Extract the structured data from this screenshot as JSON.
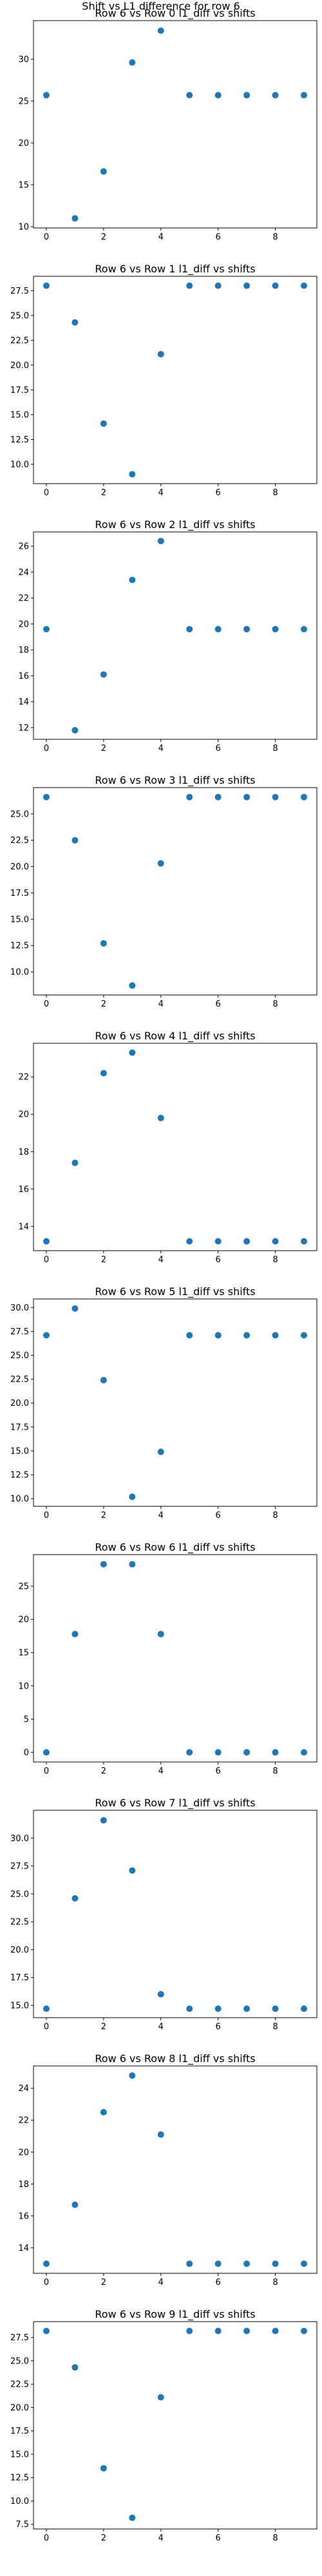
{
  "figure": {
    "suptitle": "Shift vs L1 difference for row 6",
    "marker_color": "#1f77b4"
  },
  "chart_data": [
    {
      "type": "scatter",
      "title": "Row 6 vs Row 0 l1_diff vs shifts",
      "x": [
        0,
        1,
        2,
        3,
        4,
        5,
        6,
        7,
        8,
        9
      ],
      "y": [
        25.7,
        11.0,
        16.6,
        29.6,
        33.4,
        25.7,
        25.7,
        25.7,
        25.7,
        25.7
      ],
      "xlim": [
        -0.45,
        9.45
      ],
      "ylim": [
        9.85,
        34.6
      ],
      "xticks": [
        0,
        2,
        4,
        6,
        8
      ],
      "yticks": [
        10,
        15,
        20,
        25,
        30
      ],
      "ytick_labels": [
        "10",
        "15",
        "20",
        "25",
        "30"
      ],
      "grid": false
    },
    {
      "type": "scatter",
      "title": "Row 6 vs Row 1 l1_diff vs shifts",
      "x": [
        0,
        1,
        2,
        3,
        4,
        5,
        6,
        7,
        8,
        9
      ],
      "y": [
        28.0,
        24.3,
        14.1,
        9.0,
        21.1,
        28.0,
        28.0,
        28.0,
        28.0,
        28.0
      ],
      "xlim": [
        -0.45,
        9.45
      ],
      "ylim": [
        8.05,
        28.95
      ],
      "xticks": [
        0,
        2,
        4,
        6,
        8
      ],
      "yticks": [
        10.0,
        12.5,
        15.0,
        17.5,
        20.0,
        22.5,
        25.0,
        27.5
      ],
      "ytick_labels": [
        "10.0",
        "12.5",
        "15.0",
        "17.5",
        "20.0",
        "22.5",
        "25.0",
        "27.5"
      ],
      "grid": false
    },
    {
      "type": "scatter",
      "title": "Row 6 vs Row 2 l1_diff vs shifts",
      "x": [
        0,
        1,
        2,
        3,
        4,
        5,
        6,
        7,
        8,
        9
      ],
      "y": [
        19.6,
        11.8,
        16.1,
        23.4,
        26.4,
        19.6,
        19.6,
        19.6,
        19.6,
        19.6
      ],
      "xlim": [
        -0.45,
        9.45
      ],
      "ylim": [
        11.1,
        27.1
      ],
      "xticks": [
        0,
        2,
        4,
        6,
        8
      ],
      "yticks": [
        12,
        14,
        16,
        18,
        20,
        22,
        24,
        26
      ],
      "ytick_labels": [
        "12",
        "14",
        "16",
        "18",
        "20",
        "22",
        "24",
        "26"
      ],
      "grid": false
    },
    {
      "type": "scatter",
      "title": "Row 6 vs Row 3 l1_diff vs shifts",
      "x": [
        0,
        1,
        2,
        3,
        4,
        5,
        6,
        7,
        8,
        9
      ],
      "y": [
        26.6,
        22.5,
        12.7,
        8.7,
        20.3,
        26.6,
        26.6,
        26.6,
        26.6,
        26.6
      ],
      "xlim": [
        -0.45,
        9.45
      ],
      "ylim": [
        7.8,
        27.5
      ],
      "xticks": [
        0,
        2,
        4,
        6,
        8
      ],
      "yticks": [
        10.0,
        12.5,
        15.0,
        17.5,
        20.0,
        22.5,
        25.0
      ],
      "ytick_labels": [
        "10.0",
        "12.5",
        "15.0",
        "17.5",
        "20.0",
        "22.5",
        "25.0"
      ],
      "grid": false
    },
    {
      "type": "scatter",
      "title": "Row 6 vs Row 4 l1_diff vs shifts",
      "x": [
        0,
        1,
        2,
        3,
        4,
        5,
        6,
        7,
        8,
        9
      ],
      "y": [
        13.2,
        17.4,
        22.2,
        23.3,
        19.8,
        13.2,
        13.2,
        13.2,
        13.2,
        13.2
      ],
      "xlim": [
        -0.45,
        9.45
      ],
      "ylim": [
        12.7,
        23.8
      ],
      "xticks": [
        0,
        2,
        4,
        6,
        8
      ],
      "yticks": [
        14,
        16,
        18,
        20,
        22
      ],
      "ytick_labels": [
        "14",
        "16",
        "18",
        "20",
        "22"
      ],
      "grid": false
    },
    {
      "type": "scatter",
      "title": "Row 6 vs Row 5 l1_diff vs shifts",
      "x": [
        0,
        1,
        2,
        3,
        4,
        5,
        6,
        7,
        8,
        9
      ],
      "y": [
        27.1,
        29.9,
        22.4,
        10.2,
        14.9,
        27.1,
        27.1,
        27.1,
        27.1,
        27.1
      ],
      "xlim": [
        -0.45,
        9.45
      ],
      "ylim": [
        9.2,
        30.9
      ],
      "xticks": [
        0,
        2,
        4,
        6,
        8
      ],
      "yticks": [
        10.0,
        12.5,
        15.0,
        17.5,
        20.0,
        22.5,
        25.0,
        27.5,
        30.0
      ],
      "ytick_labels": [
        "10.0",
        "12.5",
        "15.0",
        "17.5",
        "20.0",
        "22.5",
        "25.0",
        "27.5",
        "30.0"
      ],
      "grid": false
    },
    {
      "type": "scatter",
      "title": "Row 6 vs Row 6 l1_diff vs shifts",
      "x": [
        0,
        1,
        2,
        3,
        4,
        5,
        6,
        7,
        8,
        9
      ],
      "y": [
        0,
        17.8,
        28.3,
        28.3,
        17.8,
        0,
        0,
        0,
        0,
        0
      ],
      "xlim": [
        -0.45,
        9.45
      ],
      "ylim": [
        -1.45,
        29.75
      ],
      "xticks": [
        0,
        2,
        4,
        6,
        8
      ],
      "yticks": [
        0,
        5,
        10,
        15,
        20,
        25
      ],
      "ytick_labels": [
        "0",
        "5",
        "10",
        "15",
        "20",
        "25"
      ],
      "grid": false
    },
    {
      "type": "scatter",
      "title": "Row 6 vs Row 7 l1_diff vs shifts",
      "x": [
        0,
        1,
        2,
        3,
        4,
        5,
        6,
        7,
        8,
        9
      ],
      "y": [
        14.7,
        24.6,
        31.6,
        27.1,
        16.0,
        14.7,
        14.7,
        14.7,
        14.7,
        14.7
      ],
      "xlim": [
        -0.45,
        9.45
      ],
      "ylim": [
        13.9,
        32.5
      ],
      "xticks": [
        0,
        2,
        4,
        6,
        8
      ],
      "yticks": [
        15.0,
        17.5,
        20.0,
        22.5,
        25.0,
        27.5,
        30.0
      ],
      "ytick_labels": [
        "15.0",
        "17.5",
        "20.0",
        "22.5",
        "25.0",
        "27.5",
        "30.0"
      ],
      "grid": false
    },
    {
      "type": "scatter",
      "title": "Row 6 vs Row 8 l1_diff vs shifts",
      "x": [
        0,
        1,
        2,
        3,
        4,
        5,
        6,
        7,
        8,
        9
      ],
      "y": [
        13.0,
        16.7,
        22.5,
        24.8,
        21.1,
        13.0,
        13.0,
        13.0,
        13.0,
        13.0
      ],
      "xlim": [
        -0.45,
        9.45
      ],
      "ylim": [
        12.4,
        25.4
      ],
      "xticks": [
        0,
        2,
        4,
        6,
        8
      ],
      "yticks": [
        14,
        16,
        18,
        20,
        22,
        24
      ],
      "ytick_labels": [
        "14",
        "16",
        "18",
        "20",
        "22",
        "24"
      ],
      "grid": false
    },
    {
      "type": "scatter",
      "title": "Row 6 vs Row 9 l1_diff vs shifts",
      "x": [
        0,
        1,
        2,
        3,
        4,
        5,
        6,
        7,
        8,
        9
      ],
      "y": [
        28.2,
        24.3,
        13.5,
        8.2,
        21.1,
        28.2,
        28.2,
        28.2,
        28.2,
        28.2
      ],
      "xlim": [
        -0.45,
        9.45
      ],
      "ylim": [
        7.0,
        29.2
      ],
      "xticks": [
        0,
        2,
        4,
        6,
        8
      ],
      "yticks": [
        7.5,
        10.0,
        12.5,
        15.0,
        17.5,
        20.0,
        22.5,
        25.0,
        27.5
      ],
      "ytick_labels": [
        "7.5",
        "10.0",
        "12.5",
        "15.0",
        "17.5",
        "20.0",
        "22.5",
        "25.0",
        "27.5"
      ],
      "grid": false
    }
  ]
}
